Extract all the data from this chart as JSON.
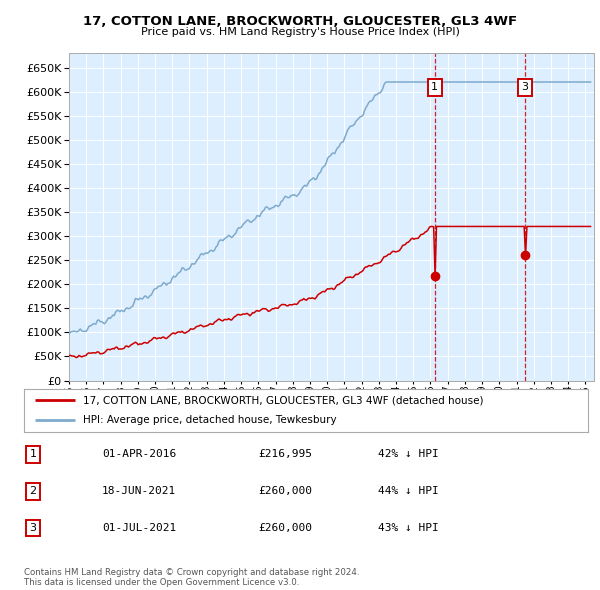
{
  "title": "17, COTTON LANE, BROCKWORTH, GLOUCESTER, GL3 4WF",
  "subtitle": "Price paid vs. HM Land Registry's House Price Index (HPI)",
  "legend_line1": "17, COTTON LANE, BROCKWORTH, GLOUCESTER, GL3 4WF (detached house)",
  "legend_line2": "HPI: Average price, detached house, Tewkesbury",
  "hpi_color": "#7eaacc",
  "price_color": "#cc0000",
  "vline_color": "#cc0000",
  "background_color": "#ddeeff",
  "grid_color": "#ffffff",
  "table": [
    {
      "num": "1",
      "date": "01-APR-2016",
      "price": "£216,995",
      "hpi": "42% ↓ HPI"
    },
    {
      "num": "2",
      "date": "18-JUN-2021",
      "price": "£260,000",
      "hpi": "44% ↓ HPI"
    },
    {
      "num": "3",
      "date": "01-JUL-2021",
      "price": "£260,000",
      "hpi": "43% ↓ HPI"
    }
  ],
  "footer": "Contains HM Land Registry data © Crown copyright and database right 2024.\nThis data is licensed under the Open Government Licence v3.0.",
  "ylim": [
    0,
    680000
  ],
  "xlim_start": 1995.0,
  "xlim_end": 2025.5,
  "ann1_x": 2016.25,
  "ann1_price": 216995,
  "ann3_x": 2021.5,
  "ann3_price": 260000
}
